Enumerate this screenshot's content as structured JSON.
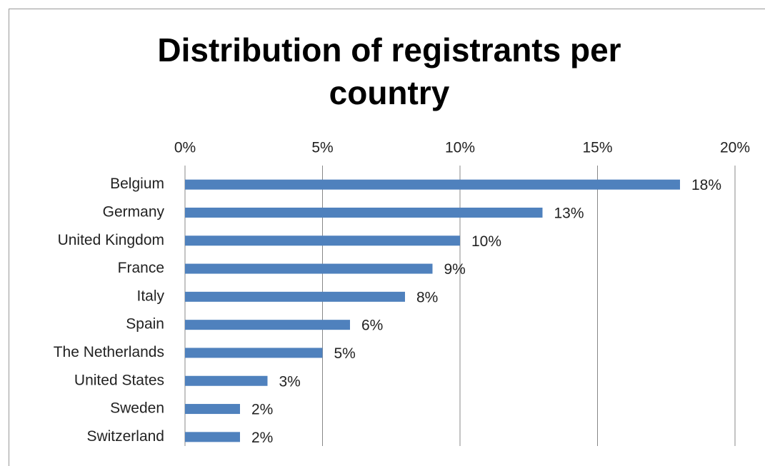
{
  "chart_data": {
    "type": "bar",
    "orientation": "horizontal",
    "title": "Distribution of registrants per country",
    "categories": [
      "Belgium",
      "Germany",
      "United Kingdom",
      "France",
      "Italy",
      "Spain",
      "The Netherlands",
      "United States",
      "Sweden",
      "Switzerland"
    ],
    "values": [
      18,
      13,
      10,
      9,
      8,
      6,
      5,
      3,
      2,
      2
    ],
    "value_labels": [
      "18%",
      "13%",
      "10%",
      "9%",
      "8%",
      "6%",
      "5%",
      "3%",
      "2%",
      "2%"
    ],
    "color": "#4f81bd",
    "xlim": [
      0,
      20
    ],
    "xticks": [
      {
        "value": 0,
        "label": "0%"
      },
      {
        "value": 5,
        "label": "5%"
      },
      {
        "value": 10,
        "label": "10%"
      },
      {
        "value": 15,
        "label": "15%"
      },
      {
        "value": 20,
        "label": "20%"
      }
    ],
    "grid": true
  }
}
